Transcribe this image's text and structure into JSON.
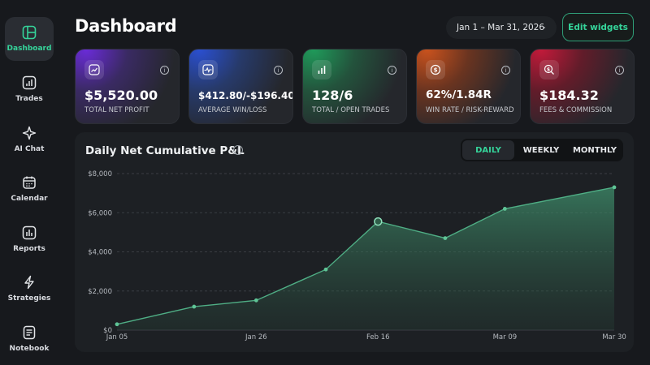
{
  "sidebar": {
    "items": [
      {
        "label": "Dashboard",
        "icon": "layout-icon",
        "active": true
      },
      {
        "label": "Trades",
        "icon": "bar-chart-icon"
      },
      {
        "label": "AI Chat",
        "icon": "sparkle-icon"
      },
      {
        "label": "Calendar",
        "icon": "calendar-icon"
      },
      {
        "label": "Reports",
        "icon": "reports-icon"
      },
      {
        "label": "Strategies",
        "icon": "lightning-icon"
      },
      {
        "label": "Notebook",
        "icon": "notebook-icon"
      }
    ]
  },
  "header": {
    "title": "Dashboard",
    "date_range": "Jan 1 – Mar 31, 2026",
    "edit_label": "Edit widgets"
  },
  "stats": [
    {
      "value": "$5,520.00",
      "label": "TOTAL NET PROFIT",
      "icon": "trend-up-icon"
    },
    {
      "value": "$412.80/-$196.40",
      "label": "AVERAGE WIN/LOSS",
      "icon": "pulse-icon"
    },
    {
      "value": "128/6",
      "label": "TOTAL / OPEN TRADES",
      "icon": "bars-icon"
    },
    {
      "value": "62%/1.84R",
      "label": "WIN RATE / RISK-REWARD",
      "icon": "dollar-target-icon"
    },
    {
      "value": "$184.32",
      "label": "FEES & COMMISSION",
      "icon": "dollar-search-icon"
    }
  ],
  "panel": {
    "title": "Daily Net Cumulative P&L",
    "tabs": [
      "DAILY",
      "WEEKLY",
      "MONTHLY"
    ],
    "active_tab": "DAILY"
  },
  "colors": {
    "accent": "#35d49a",
    "line": "#4fae85",
    "card_gradients": [
      [
        "#6a2bd8",
        "#2a2d33"
      ],
      [
        "#2a4fd0",
        "#2a2d33"
      ],
      [
        "#1f9a5a",
        "#2a2d33"
      ],
      [
        "#c9521d",
        "#2a2d33"
      ],
      [
        "#c21a3a",
        "#2a2d33"
      ]
    ]
  },
  "chart_data": {
    "type": "area",
    "x": [
      "Jan 05",
      "Jan 15",
      "Jan 26",
      "Feb 05",
      "Feb 16",
      "Feb 26",
      "Mar 09",
      "Mar 30"
    ],
    "xticks": [
      "Jan 05",
      "Jan 26",
      "Feb 16",
      "Mar 09",
      "Mar 30"
    ],
    "values": [
      300,
      1200,
      1520,
      3100,
      5550,
      4700,
      6200,
      7300
    ],
    "highlight_index": 4,
    "yticks": [
      "$0",
      "$2,000",
      "$4,000",
      "$6,000",
      "$8,000"
    ],
    "ylim": [
      0,
      8000
    ],
    "grid": true
  }
}
